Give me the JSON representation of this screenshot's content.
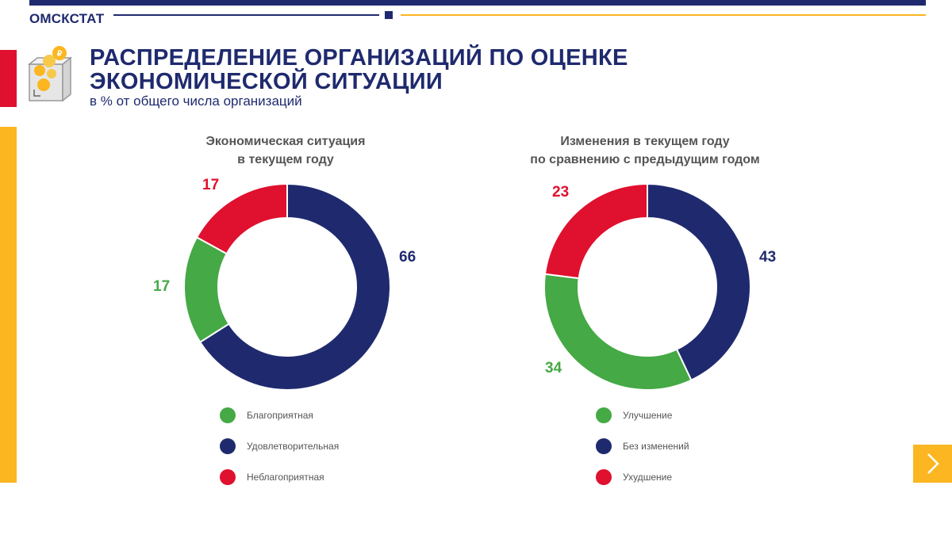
{
  "header": {
    "brand": "ОМСКСТАТ"
  },
  "title": {
    "line1": "РАСПРЕДЕЛЕНИЕ ОРГАНИЗАЦИЙ ПО ОЦЕНКЕ",
    "line2": "ЭКОНОМИЧЕСКОЙ СИТУАЦИИ"
  },
  "subtitle": "в % от общего числа организаций",
  "colors": {
    "navy": "#1f2a6e",
    "green": "#45a945",
    "red": "#e0102f",
    "yellow": "#fbb621",
    "gray_text": "#555555"
  },
  "icons": {
    "header_icon": "box-with-coins-icon",
    "nav": "chevron-right-icon"
  },
  "chart_data": [
    {
      "type": "pie",
      "variant": "donut",
      "title_line1": "Экономическая ситуация",
      "title_line2": "в текущем году",
      "slices": [
        {
          "name": "Удовлетворительная",
          "value": 66,
          "label": "66",
          "color": "#1f2a6e"
        },
        {
          "name": "Благоприятная",
          "value": 17,
          "label": "17",
          "color": "#45a945"
        },
        {
          "name": "Неблагоприятная",
          "value": 17,
          "label": "17",
          "color": "#e0102f"
        }
      ],
      "legend": [
        "Благоприятная",
        "Удовлетворительная",
        "Неблагоприятная"
      ],
      "legend_colors": [
        "#45a945",
        "#1f2a6e",
        "#e0102f"
      ]
    },
    {
      "type": "pie",
      "variant": "donut",
      "title_line1": "Изменения в текущем году",
      "title_line2": "по сравнению с предыдущим годом",
      "slices": [
        {
          "name": "Без изменений",
          "value": 43,
          "label": "43",
          "color": "#1f2a6e"
        },
        {
          "name": "Улучшение",
          "value": 34,
          "label": "34",
          "color": "#45a945"
        },
        {
          "name": "Ухудшение",
          "value": 23,
          "label": "23",
          "color": "#e0102f"
        }
      ],
      "legend": [
        "Улучшение",
        "Без изменений",
        "Ухудшение"
      ],
      "legend_colors": [
        "#45a945",
        "#1f2a6e",
        "#e0102f"
      ]
    }
  ]
}
